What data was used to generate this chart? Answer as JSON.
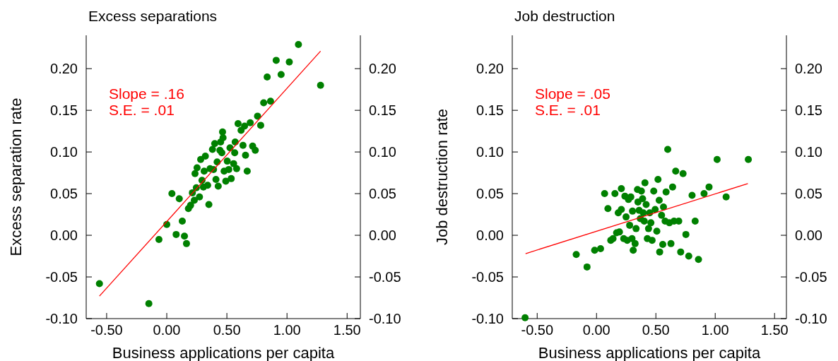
{
  "chart_data": [
    {
      "type": "scatter",
      "title": "Excess separations",
      "xlabel": "Business applications per capita",
      "ylabel": "Excess separation rate",
      "annotations": [
        "Slope = .16",
        "S.E. = .01"
      ],
      "xlim": [
        -0.67,
        1.61
      ],
      "xticks": [
        {
          "value": -0.5,
          "label": "-0.50"
        },
        {
          "value": 0,
          "label": "0.00"
        },
        {
          "value": 0.5,
          "label": "0.50"
        },
        {
          "value": 1,
          "label": "1.00"
        },
        {
          "value": 1.5,
          "label": "1.50"
        }
      ],
      "ylim": [
        -0.1,
        0.24
      ],
      "yticks": [
        {
          "value": -0.1,
          "label": "-0.10"
        },
        {
          "value": -0.05,
          "label": "-0.05"
        },
        {
          "value": 0,
          "label": "0.00"
        },
        {
          "value": 0.05,
          "label": "0.05"
        },
        {
          "value": 0.1,
          "label": "0.10"
        },
        {
          "value": 0.15,
          "label": "0.15"
        },
        {
          "value": 0.2,
          "label": "0.20"
        }
      ],
      "y2lim": [
        -0.1,
        0.24
      ],
      "y2ticks": [
        {
          "value": -0.1,
          "label": "-0.10"
        },
        {
          "value": -0.05,
          "label": "-0.05"
        },
        {
          "value": 0,
          "label": "0.00"
        },
        {
          "value": 0.05,
          "label": "0.05"
        },
        {
          "value": 0.1,
          "label": "0.10"
        },
        {
          "value": 0.15,
          "label": "0.15"
        },
        {
          "value": 0.2,
          "label": "0.20"
        }
      ],
      "series": [
        {
          "type": "scatter",
          "color": "#008000",
          "marker": "circle",
          "x": [
            -0.56,
            -0.149,
            -0.065,
            0,
            0.043,
            0.078,
            0.104,
            0.129,
            0.147,
            0.164,
            0.18,
            0.198,
            0.213,
            0.229,
            0.246,
            0.235,
            0.252,
            0.272,
            0.282,
            0.293,
            0.305,
            0.311,
            0.321,
            0.34,
            0.35,
            0.36,
            0.38,
            0.389,
            0.399,
            0.409,
            0.419,
            0.428,
            0.442,
            0.448,
            0.458,
            0.464,
            0.468,
            0.477,
            0.491,
            0.503,
            0.516,
            0.526,
            0.536,
            0.556,
            0.565,
            0.569,
            0.581,
            0.593,
            0.618,
            0.634,
            0.647,
            0.655,
            0.669,
            0.694,
            0.714,
            0.736,
            0.755,
            0.781,
            0.806,
            0.863,
            0.835,
            0.91,
            0.951,
            1.019,
            1.095,
            1.279
          ],
          "values": [
            -0.058,
            -0.082,
            -0.005,
            0.013,
            0.05,
            0.001,
            0.044,
            0.017,
            -0.001,
            -0.01,
            0.032,
            0.036,
            0.051,
            0.042,
            0.057,
            0.074,
            0.081,
            0.046,
            0.091,
            0.066,
            0.058,
            0.077,
            0.095,
            0.06,
            0.037,
            0.08,
            0.103,
            0.079,
            0.11,
            0.067,
            0.088,
            0.059,
            0.102,
            0.112,
            0.099,
            0.124,
            0.117,
            0.077,
            0.065,
            0.089,
            0.079,
            0.105,
            0.068,
            0.086,
            0.099,
            0.112,
            0.08,
            0.134,
            0.126,
            0.108,
            0.131,
            0.096,
            0.077,
            0.135,
            0.107,
            0.102,
            0.143,
            0.132,
            0.159,
            0.161,
            0.19,
            0.21,
            0.193,
            0.208,
            0.229,
            0.18
          ]
        },
        {
          "type": "line",
          "color": "#ff0000",
          "marker": "none",
          "x": [
            -0.56,
            1.279
          ],
          "values": [
            -0.073,
            0.221
          ]
        }
      ]
    },
    {
      "type": "scatter",
      "title": "Job destruction",
      "xlabel": "Business applications per capita",
      "ylabel": "Job destruction rate",
      "annotations": [
        "Slope = .05",
        "S.E. = .01"
      ],
      "xlim": [
        -0.71,
        1.6
      ],
      "xticks": [
        {
          "value": -0.5,
          "label": "-0.50"
        },
        {
          "value": 0,
          "label": "0.00"
        },
        {
          "value": 0.5,
          "label": "0.50"
        },
        {
          "value": 1,
          "label": "1.00"
        },
        {
          "value": 1.5,
          "label": "1.50"
        }
      ],
      "ylim": [
        -0.1,
        0.24
      ],
      "yticks": [
        {
          "value": -0.1,
          "label": "-0.10"
        },
        {
          "value": -0.05,
          "label": "-0.05"
        },
        {
          "value": 0,
          "label": "0.00"
        },
        {
          "value": 0.05,
          "label": "0.05"
        },
        {
          "value": 0.1,
          "label": "0.10"
        },
        {
          "value": 0.15,
          "label": "0.15"
        },
        {
          "value": 0.2,
          "label": "0.20"
        }
      ],
      "y2lim": [
        -0.1,
        0.24
      ],
      "y2ticks": [
        {
          "value": -0.1,
          "label": "-0.10"
        },
        {
          "value": -0.05,
          "label": "-0.05"
        },
        {
          "value": 0,
          "label": "0.00"
        },
        {
          "value": 0.05,
          "label": "0.05"
        },
        {
          "value": 0.1,
          "label": "0.10"
        },
        {
          "value": 0.15,
          "label": "0.15"
        },
        {
          "value": 0.2,
          "label": "0.20"
        }
      ],
      "series": [
        {
          "type": "scatter",
          "color": "#008000",
          "marker": "circle",
          "x": [
            -0.602,
            -0.171,
            -0.08,
            -0.016,
            0.034,
            0.068,
            0.096,
            0.12,
            0.139,
            0.155,
            0.169,
            0.183,
            0.193,
            0.209,
            0.209,
            0.229,
            0.239,
            0.249,
            0.259,
            0.269,
            0.279,
            0.289,
            0.299,
            0.303,
            0.309,
            0.325,
            0.333,
            0.345,
            0.349,
            0.359,
            0.369,
            0.378,
            0.388,
            0.394,
            0.402,
            0.408,
            0.418,
            0.428,
            0.438,
            0.448,
            0.458,
            0.468,
            0.482,
            0.494,
            0.508,
            0.518,
            0.528,
            0.532,
            0.548,
            0.558,
            0.564,
            0.578,
            0.586,
            0.6,
            0.614,
            0.627,
            0.641,
            0.653,
            0.667,
            0.693,
            0.709,
            0.729,
            0.753,
            0.777,
            0.805,
            0.831,
            0.859,
            0.906,
            0.948,
            1.016,
            1.092,
            1.279
          ],
          "values": [
            -0.099,
            -0.023,
            -0.038,
            -0.018,
            -0.016,
            0.05,
            0.032,
            -0.006,
            -0.004,
            0.05,
            0.003,
            0.027,
            0.004,
            0.056,
            0.031,
            -0.004,
            0.047,
            0.022,
            -0.006,
            0.043,
            0.012,
            0.046,
            -0.004,
            0.029,
            -0.018,
            -0.01,
            0.008,
            0.055,
            0.04,
            0.03,
            0.02,
            0.053,
            0.044,
            0.027,
            0.017,
            0.063,
            0.037,
            -0.004,
            0.008,
            0.027,
            0.015,
            -0.006,
            0.053,
            0.031,
            0.005,
            0.067,
            0.042,
            -0.02,
            0.024,
            -0.011,
            0.034,
            0.017,
            0.052,
            0.103,
            0.015,
            -0.01,
            0.058,
            0.017,
            0.077,
            0.017,
            -0.02,
            0.074,
            0.001,
            -0.025,
            0.048,
            0.017,
            -0.029,
            0.05,
            0.058,
            0.091,
            0.046,
            0.091
          ]
        },
        {
          "type": "line",
          "color": "#ff0000",
          "marker": "none",
          "x": [
            -0.598,
            1.275
          ],
          "values": [
            -0.022,
            0.062
          ]
        }
      ]
    }
  ]
}
